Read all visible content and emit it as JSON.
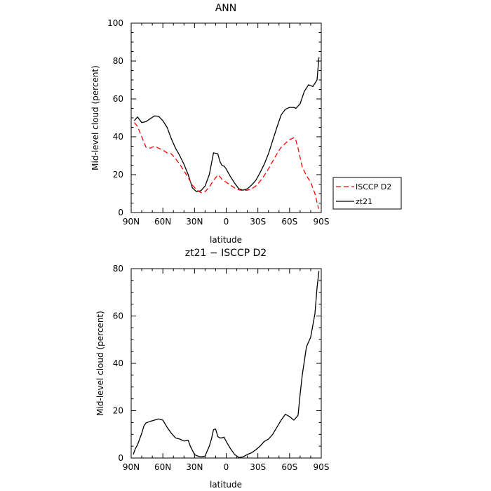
{
  "chart_data": [
    {
      "type": "line",
      "title": "ANN",
      "xlabel": "latitude",
      "ylabel": "Mid-level cloud (percent)",
      "xlim": [
        90,
        -90
      ],
      "ylim": [
        0,
        100
      ],
      "xticks": [
        90,
        60,
        30,
        0,
        -30,
        -60,
        -90
      ],
      "xtick_labels": [
        "90N",
        "60N",
        "30N",
        "0",
        "30S",
        "60S",
        "90S"
      ],
      "yticks": [
        0,
        20,
        40,
        60,
        80,
        100
      ],
      "ytick_labels": [
        "0",
        "20",
        "40",
        "60",
        "80",
        "100"
      ],
      "grid": false,
      "legend": "right",
      "series": [
        {
          "name": "zt21",
          "color": "#000000",
          "dash": "solid",
          "x": [
            87,
            84,
            80,
            76,
            72,
            68,
            64,
            60,
            56,
            52,
            48,
            44,
            40,
            36,
            32,
            28,
            24,
            20,
            16,
            12,
            8,
            6,
            4,
            2,
            0,
            -4,
            -8,
            -12,
            -16,
            -20,
            -24,
            -28,
            -32,
            -36,
            -40,
            -44,
            -48,
            -52,
            -56,
            -60,
            -64,
            -66,
            -70,
            -74,
            -78,
            -82,
            -86,
            -87.8
          ],
          "y": [
            48.5,
            50.5,
            47.5,
            48,
            49.5,
            51,
            50.8,
            48.5,
            45,
            39,
            34,
            30,
            25.5,
            20,
            13,
            11,
            11.5,
            14,
            20,
            31.5,
            31,
            27,
            24.8,
            24.5,
            23,
            19,
            15.5,
            12.5,
            11.8,
            12.5,
            14.5,
            17,
            21,
            25.5,
            31,
            38,
            45,
            51.5,
            54.5,
            55.5,
            55.5,
            55,
            57.5,
            64,
            67.5,
            66.5,
            70,
            82
          ]
        },
        {
          "name": "ISCCP D2",
          "color": "#ff0000",
          "dash": "dashed",
          "x": [
            87,
            84,
            80,
            76,
            72,
            68,
            64,
            60,
            56,
            52,
            48,
            44,
            40,
            36,
            32,
            28,
            24,
            20,
            16,
            12,
            8,
            6,
            4,
            0,
            -4,
            -8,
            -12,
            -16,
            -20,
            -24,
            -28,
            -32,
            -36,
            -40,
            -44,
            -48,
            -52,
            -56,
            -60,
            -64,
            -66,
            -68,
            -72,
            -76,
            -80,
            -84,
            -87.5
          ],
          "y": [
            47.5,
            45.5,
            40,
            34.5,
            34,
            35,
            34,
            33,
            31.5,
            31,
            28.5,
            25.5,
            22,
            18.5,
            14.5,
            12,
            10.5,
            11,
            13.5,
            17,
            19.8,
            19,
            17.5,
            16,
            14.5,
            13,
            12,
            11.5,
            11.8,
            12.5,
            14,
            16.5,
            19.5,
            23,
            27,
            31,
            34.5,
            36.5,
            38.5,
            39.5,
            38,
            34,
            24,
            19.5,
            16,
            10,
            2
          ]
        }
      ]
    },
    {
      "type": "line",
      "title": "zt21 − ISCCP D2",
      "xlabel": "latitude",
      "ylabel": "Mid-level cloud (percent)",
      "xlim": [
        90,
        -90
      ],
      "ylim": [
        0,
        80
      ],
      "xticks": [
        90,
        60,
        30,
        0,
        -30,
        -60,
        -90
      ],
      "xtick_labels": [
        "90N",
        "60N",
        "30N",
        "0",
        "30S",
        "60S",
        "90S"
      ],
      "yticks": [
        0,
        20,
        40,
        60,
        80
      ],
      "ytick_labels": [
        "0",
        "20",
        "40",
        "60",
        "80"
      ],
      "grid": false,
      "series": [
        {
          "color": "#000000",
          "dash": "solid",
          "x": [
            88,
            86,
            84,
            82,
            80,
            78,
            76,
            72,
            68,
            64,
            60,
            56,
            52,
            48,
            44,
            40,
            36,
            34,
            30,
            28,
            24,
            20,
            18,
            16,
            14,
            12,
            10,
            8,
            6,
            4,
            2,
            0,
            -4,
            -8,
            -12,
            -16,
            -20,
            -24,
            -28,
            -32,
            -36,
            -40,
            -44,
            -48,
            -52,
            -56,
            -60,
            -64,
            -68,
            -70,
            -72,
            -76,
            -80,
            -84,
            -86,
            -87.8
          ],
          "y": [
            1.5,
            4,
            5.5,
            8,
            10.5,
            13.5,
            14.8,
            15.5,
            16,
            16.5,
            16,
            13,
            10.5,
            8.5,
            8,
            7.2,
            7.5,
            5,
            1.5,
            1,
            0.5,
            0.8,
            3,
            5,
            8,
            12,
            12.3,
            9,
            8.5,
            8.5,
            8.8,
            7,
            4,
            1.5,
            0.2,
            0.5,
            1.5,
            2.2,
            3.5,
            5,
            7,
            8,
            10,
            13,
            16,
            18.5,
            17.5,
            16,
            18,
            27,
            35,
            47,
            51,
            61,
            72,
            79
          ]
        }
      ]
    }
  ]
}
